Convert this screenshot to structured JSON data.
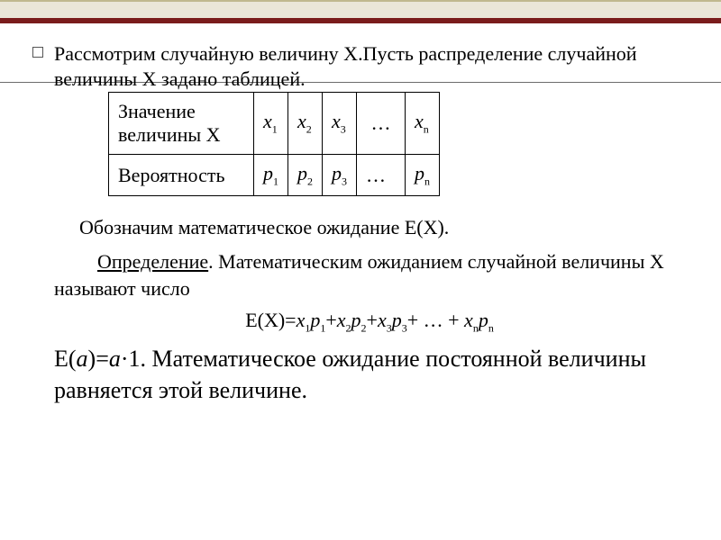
{
  "colors": {
    "band_bg": "#eae6d8",
    "band_border": "#c0b88f",
    "accent_bar": "#7a1c1c",
    "rule": "#6b6b6b",
    "text": "#000000",
    "background": "#ffffff"
  },
  "intro_text": "Рассмотрим случайную величину Х.Пусть распределение случайной величины Х задано таблицей.",
  "table": {
    "row1_header": "Значение величины Х",
    "row2_header": "Вероятность",
    "columns": [
      {
        "val": "x",
        "sub": "1",
        "prob": "p",
        "psub": "1"
      },
      {
        "val": "x",
        "sub": "2",
        "prob": "p",
        "psub": "2"
      },
      {
        "val": "x",
        "sub": "3",
        "prob": "p",
        "psub": "3"
      },
      {
        "val": "…",
        "sub": "",
        "prob": "…",
        "psub": ""
      },
      {
        "val": "x",
        "sub": "n",
        "prob": "p",
        "psub": "n"
      }
    ],
    "cell_padding": "8px 10px",
    "font_size": 22
  },
  "line_denote": "Обозначим математическое ожидание Е(Х).",
  "definition": {
    "word": "Определение",
    "rest": ". Математическим ожиданием случайной величины Х называют число"
  },
  "formula": {
    "lhs": "Е(Х)=",
    "terms": [
      {
        "a": "x",
        "as": "1",
        "b": "p",
        "bs": "1"
      },
      {
        "a": "x",
        "as": "2",
        "b": "p",
        "bs": "2"
      },
      {
        "a": "x",
        "as": "3",
        "b": "p",
        "bs": "3"
      }
    ],
    "tail": "+ … + ",
    "last": {
      "a": "x",
      "as": "n",
      "b": "p",
      "bs": "n"
    }
  },
  "const_line": {
    "lead": "Е(",
    "a_glyph": "а",
    "mid": ")=",
    "a_glyph2": "а",
    "dot_one": "·1. ",
    "rest": "Математическое ожидание постоянной величины равняется этой величине."
  }
}
